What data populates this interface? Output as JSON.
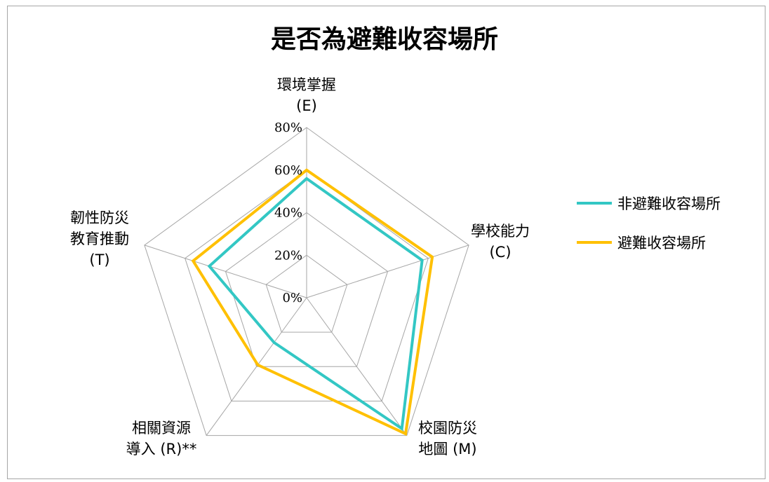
{
  "chart_data": {
    "type": "radar",
    "title": "是否為避難收容場所",
    "categories": [
      [
        "環境掌握",
        "(E)"
      ],
      [
        "學校能力",
        "(C)"
      ],
      [
        "校園防災",
        "地圖 (M)"
      ],
      [
        "相關資源",
        "導入 (R)**"
      ],
      [
        "韌性防災",
        "教育推動",
        "(T)"
      ]
    ],
    "ticks": [
      "0%",
      "20%",
      "40%",
      "60%",
      "80%"
    ],
    "rmax": 80,
    "series": [
      {
        "name": "非避難收容場所",
        "color": "#33c7c4",
        "values": [
          56,
          57,
          76,
          26,
          48
        ]
      },
      {
        "name": "避難收容場所",
        "color": "#ffc000",
        "values": [
          60,
          62,
          79,
          39,
          56
        ]
      }
    ],
    "grid_color": "#a6a6a6",
    "legend": "right"
  }
}
